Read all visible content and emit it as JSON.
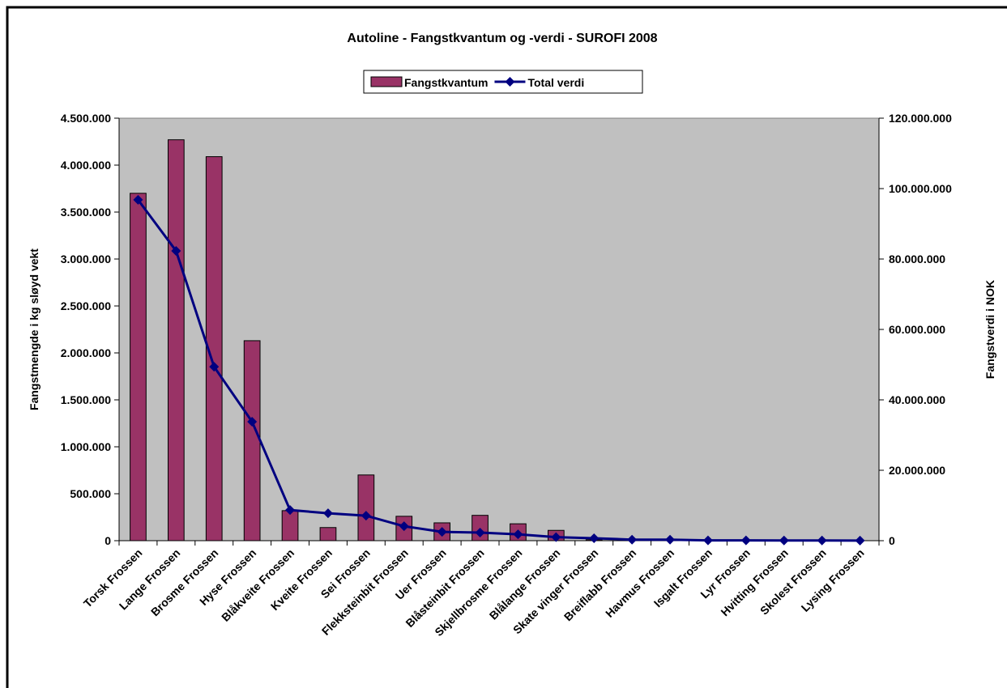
{
  "chart_data": {
    "type": "bar_line",
    "title": "Autoline - Fangstkvantum og -verdi - SUROFI 2008",
    "y_label": "Fangstmengde i kg sløyd vekt",
    "y2_label": "Fangstverdi i NOK",
    "categories": [
      "Torsk Frossen",
      "Lange Frossen",
      "Brosme Frossen",
      "Hyse Frossen",
      "Blåkveite Frossen",
      "Kveite Frossen",
      "Sei Frossen",
      "Flekksteinbit Frossen",
      "Uer Frossen",
      "Blåsteinbit Frossen",
      "Skjellbrosme Frossen",
      "Blålange Frossen",
      "Skate vinger Frossen",
      "Breiflabb Frossen",
      "Havmus Frossen",
      "Isgalt Frossen",
      "Lyr Frossen",
      "Hvitting Frossen",
      "Skolest Frossen",
      "Lysing Frossen"
    ],
    "series": [
      {
        "name": "Fangstkvantum",
        "type": "bar",
        "color": "#993366",
        "values": [
          3700000,
          4270000,
          4090000,
          2130000,
          320000,
          140000,
          700000,
          260000,
          190000,
          270000,
          180000,
          110000,
          10000,
          5000,
          3000,
          1000,
          1000,
          500,
          500,
          200
        ]
      },
      {
        "name": "Total verdi",
        "type": "line",
        "axis": "y2",
        "color": "#000080",
        "values": [
          96800000,
          82300000,
          49400000,
          33800000,
          8700000,
          7800000,
          7100000,
          4100000,
          2500000,
          2300000,
          1800000,
          1000000,
          700000,
          300000,
          300000,
          100000,
          100000,
          50000,
          50000,
          20000
        ]
      }
    ],
    "ylim": [
      0,
      4500000
    ],
    "yticks": [
      0,
      {
        "value": 500000,
        "label": "500.000"
      },
      {
        "value": 1000000,
        "label": "1.000.000"
      },
      {
        "value": 1500000,
        "label": "1.500.000"
      },
      {
        "value": 2000000,
        "label": "2.000.000"
      },
      {
        "value": 2500000,
        "label": "2.500.000"
      },
      {
        "value": 3000000,
        "label": "3.000.000"
      },
      {
        "value": 3500000,
        "label": "3.500.000"
      },
      {
        "value": 4000000,
        "label": "4.000.000"
      },
      {
        "value": 4500000,
        "label": "4.500.000"
      }
    ],
    "y2lim": [
      0,
      120000000
    ],
    "y2ticks": [
      0,
      {
        "value": 20000000,
        "label": "20.000.000"
      },
      {
        "value": 40000000,
        "label": "40.000.000"
      },
      {
        "value": 60000000,
        "label": "60.000.000"
      },
      {
        "value": 80000000,
        "label": "80.000.000"
      },
      {
        "value": 100000000,
        "label": "100.000.000"
      },
      {
        "value": 120000000,
        "label": "120.000.000"
      }
    ],
    "plot_background": "#c0c0c0",
    "legend": "top"
  }
}
